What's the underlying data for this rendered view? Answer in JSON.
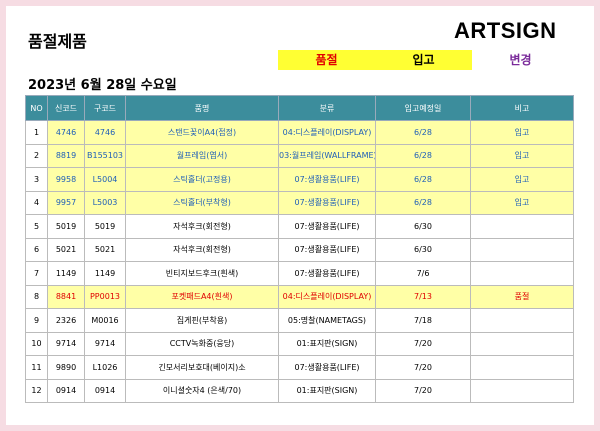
{
  "header": {
    "title": "품절제품",
    "brand": "ARTSIGN",
    "date": "2023년 6월 28일 수요일",
    "legend": [
      {
        "label": "품절",
        "style": "soldout"
      },
      {
        "label": "입고",
        "style": "restock"
      },
      {
        "label": "변경",
        "style": "change"
      }
    ]
  },
  "table": {
    "columns": [
      "NO",
      "신코드",
      "구코드",
      "품명",
      "분류",
      "입고예정일",
      "비고"
    ],
    "rows": [
      {
        "cells": [
          1,
          "4746",
          "4746",
          "스탠드꽂이A4(접정)",
          "04:디스플레이(DISPLAY)",
          "6/28",
          "입고"
        ],
        "style": "restock"
      },
      {
        "cells": [
          2,
          "8819",
          "B155103",
          "월프레임(엽서)",
          "03:월프레임(WALLFRAME)",
          "6/28",
          "입고"
        ],
        "style": "restock"
      },
      {
        "cells": [
          3,
          "9958",
          "L5004",
          "스틱홀더(고정용)",
          "07:생활용품(LIFE)",
          "6/28",
          "입고"
        ],
        "style": "restock"
      },
      {
        "cells": [
          4,
          "9957",
          "L5003",
          "스틱홀더(부착형)",
          "07:생활용품(LIFE)",
          "6/28",
          "입고"
        ],
        "style": "restock"
      },
      {
        "cells": [
          5,
          "5019",
          "5019",
          "자석후크(회전형)",
          "07:생활용품(LIFE)",
          "6/30"
        ]
      },
      {
        "cells": [
          6,
          "5021",
          "5021",
          "자석후크(회전형)",
          "07:생활용품(LIFE)",
          "6/30"
        ]
      },
      {
        "cells": [
          7,
          "1149",
          "1149",
          "빈티지보드후크(흰색)",
          "07:생활용품(LIFE)",
          "7/6"
        ]
      },
      {
        "cells": [
          8,
          "8841",
          "PP0013",
          "포켓패드A4(흰색)",
          "04:디스플레이(DISPLAY)",
          "7/13",
          "품절"
        ],
        "style": "soldout"
      },
      {
        "cells": [
          9,
          "2326",
          "M0016",
          "집게핀(부착용)",
          "05:명찰(NAMETAGS)",
          "7/18"
        ]
      },
      {
        "cells": [
          10,
          "9714",
          "9714",
          "CCTV녹화중(웅당)",
          "01:표지판(SIGN)",
          "7/20"
        ]
      },
      {
        "cells": [
          11,
          "9890",
          "L1026",
          "긴모서리보호대(베이지)소",
          "07:생활용품(LIFE)",
          "7/20"
        ]
      },
      {
        "cells": [
          12,
          "0914",
          "0914",
          "이니셜숫자4 (은색/70)",
          "01:표지판(SIGN)",
          "7/20"
        ]
      }
    ]
  }
}
